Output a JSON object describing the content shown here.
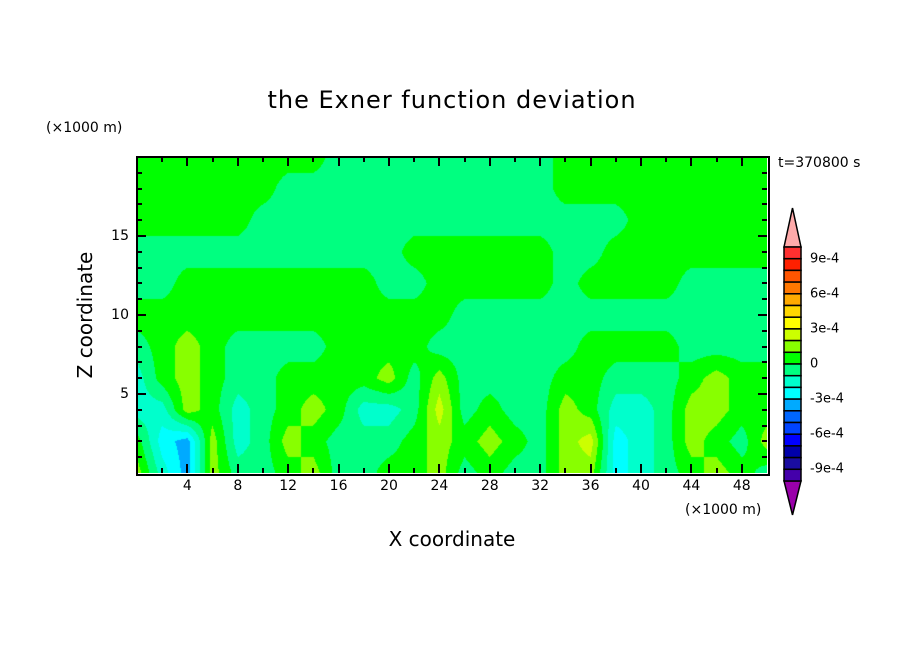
{
  "chart_data": {
    "type": "heatmap",
    "title": "the Exner function deviation",
    "xlabel": "X coordinate",
    "ylabel": "Z coordinate",
    "x_unit": "(×1000 m)",
    "y_unit": "(×1000 m)",
    "time_label": "t=370800 s",
    "xlim": [
      0,
      50
    ],
    "ylim": [
      0,
      20
    ],
    "x_ticks": [
      "4",
      "8",
      "12",
      "16",
      "20",
      "24",
      "28",
      "32",
      "36",
      "40",
      "44",
      "48"
    ],
    "y_ticks": [
      "5",
      "10",
      "15"
    ],
    "x": [
      0,
      2,
      4,
      6,
      8,
      10,
      12,
      14,
      16,
      18,
      20,
      22,
      24,
      26,
      28,
      30,
      32,
      34,
      36,
      38,
      40,
      42,
      44,
      46,
      48,
      50
    ],
    "z": [
      20,
      18,
      16,
      14,
      12,
      10,
      8,
      6,
      4,
      2,
      0
    ],
    "values": [
      [
        5e-05,
        5e-05,
        5e-05,
        5e-05,
        5e-05,
        5e-05,
        5e-05,
        5e-05,
        -5e-05,
        -5e-05,
        -5e-05,
        -5e-05,
        -5e-05,
        -5e-05,
        -5e-05,
        -5e-05,
        -5e-05,
        5e-05,
        5e-05,
        5e-05,
        5e-05,
        5e-05,
        5e-05,
        5e-05,
        5e-05,
        5e-05
      ],
      [
        5e-05,
        5e-05,
        5e-05,
        5e-05,
        5e-05,
        5e-05,
        -5e-05,
        -5e-05,
        -5e-05,
        -5e-05,
        -5e-05,
        -5e-05,
        -5e-05,
        -5e-05,
        -5e-05,
        -5e-05,
        -5e-05,
        5e-05,
        5e-05,
        5e-05,
        5e-05,
        5e-05,
        5e-05,
        5e-05,
        5e-05,
        5e-05
      ],
      [
        5e-05,
        5e-05,
        5e-05,
        5e-05,
        5e-05,
        -5e-05,
        -5e-05,
        -5e-05,
        -5e-05,
        -5e-05,
        -5e-05,
        -5e-05,
        -5e-05,
        -5e-05,
        -5e-05,
        -5e-05,
        -5e-05,
        -5e-05,
        -5e-05,
        -5e-05,
        5e-05,
        5e-05,
        5e-05,
        5e-05,
        5e-05,
        5e-05
      ],
      [
        -5e-05,
        -5e-05,
        -5e-05,
        -5e-05,
        -5e-05,
        -5e-05,
        -5e-05,
        -5e-05,
        -5e-05,
        -5e-05,
        -5e-05,
        5e-05,
        5e-05,
        5e-05,
        5e-05,
        5e-05,
        5e-05,
        -5e-05,
        -5e-05,
        5e-05,
        5e-05,
        5e-05,
        5e-05,
        5e-05,
        5e-05,
        5e-05
      ],
      [
        -5e-05,
        -5e-05,
        5e-05,
        5e-05,
        5e-05,
        5e-05,
        5e-05,
        5e-05,
        5e-05,
        5e-05,
        -5e-05,
        -5e-05,
        5e-05,
        5e-05,
        5e-05,
        5e-05,
        5e-05,
        -5e-05,
        5e-05,
        5e-05,
        5e-05,
        5e-05,
        -5e-05,
        -5e-05,
        -5e-05,
        -5e-05
      ],
      [
        5e-05,
        5e-05,
        5e-05,
        5e-05,
        5e-05,
        5e-05,
        5e-05,
        5e-05,
        5e-05,
        5e-05,
        5e-05,
        5e-05,
        5e-05,
        -5e-05,
        -5e-05,
        -5e-05,
        -5e-05,
        -5e-05,
        -5e-05,
        -5e-05,
        -5e-05,
        -5e-05,
        -5e-05,
        -5e-05,
        -5e-05,
        -5e-05
      ],
      [
        -5e-05,
        5e-05,
        0.00015,
        5e-05,
        -5e-05,
        -5e-05,
        -5e-05,
        -5e-05,
        5e-05,
        5e-05,
        5e-05,
        5e-05,
        -5e-05,
        -5e-05,
        -5e-05,
        -5e-05,
        -5e-05,
        -5e-05,
        5e-05,
        5e-05,
        5e-05,
        5e-05,
        -5e-05,
        -5e-05,
        -5e-05,
        -5e-05
      ],
      [
        -0.00015,
        5e-05,
        0.00015,
        5e-05,
        -5e-05,
        -5e-05,
        5e-05,
        5e-05,
        5e-05,
        5e-05,
        0.00015,
        -5e-05,
        0.00015,
        -5e-05,
        -5e-05,
        -5e-05,
        -5e-05,
        5e-05,
        5e-05,
        -5e-05,
        -5e-05,
        -5e-05,
        5e-05,
        0.00015,
        5e-05,
        5e-05
      ],
      [
        -0.00015,
        -0.00015,
        0.00015,
        5e-05,
        -0.00015,
        -5e-05,
        5e-05,
        0.00015,
        5e-05,
        -0.00015,
        -0.00015,
        -5e-05,
        0.00025,
        -5e-05,
        5e-05,
        -5e-05,
        -5e-05,
        0.00015,
        5e-05,
        -0.00015,
        -0.00015,
        -5e-05,
        0.00015,
        0.00015,
        5e-05,
        5e-05
      ],
      [
        5e-05,
        -0.00025,
        -0.00035,
        0.00015,
        -0.00015,
        -5e-05,
        0.00015,
        5e-05,
        -5e-05,
        -5e-05,
        -5e-05,
        5e-05,
        0.00015,
        5e-05,
        0.00015,
        5e-05,
        -5e-05,
        0.00015,
        0.00025,
        -0.00025,
        -0.00015,
        -5e-05,
        0.00015,
        5e-05,
        -5e-05,
        0.00015
      ],
      [
        0.00015,
        -0.00015,
        -0.00035,
        0.00015,
        -5e-05,
        -5e-05,
        5e-05,
        0.00015,
        -5e-05,
        -5e-05,
        5e-05,
        5e-05,
        0.00015,
        -5e-05,
        5e-05,
        -5e-05,
        -5e-05,
        0.00015,
        0.00015,
        -0.00025,
        -0.00015,
        -5e-05,
        5e-05,
        0.00015,
        5e-05,
        -5e-05
      ]
    ],
    "colorbar": {
      "labels": [
        "9e-4",
        "6e-4",
        "3e-4",
        "0",
        "-3e-4",
        "-6e-4",
        "-9e-4"
      ],
      "label_values": [
        0.0009,
        0.0006,
        0.0003,
        0,
        -0.0003,
        -0.0006,
        -0.0009
      ],
      "range": [
        -0.001,
        0.001
      ],
      "step": 0.0001,
      "colors_high_to_low": [
        "#ff3030",
        "#ff2000",
        "#ff5500",
        "#ff7700",
        "#ffaa00",
        "#ffd700",
        "#ffff00",
        "#ccff00",
        "#88ff00",
        "#00ff00",
        "#00ff80",
        "#00ffcc",
        "#00ffff",
        "#00aaff",
        "#0066ff",
        "#0044ff",
        "#0000ff",
        "#0000aa",
        "#1a0da0",
        "#4400aa"
      ],
      "over_color": "#ffaaaa",
      "under_color": "#9900aa"
    }
  }
}
